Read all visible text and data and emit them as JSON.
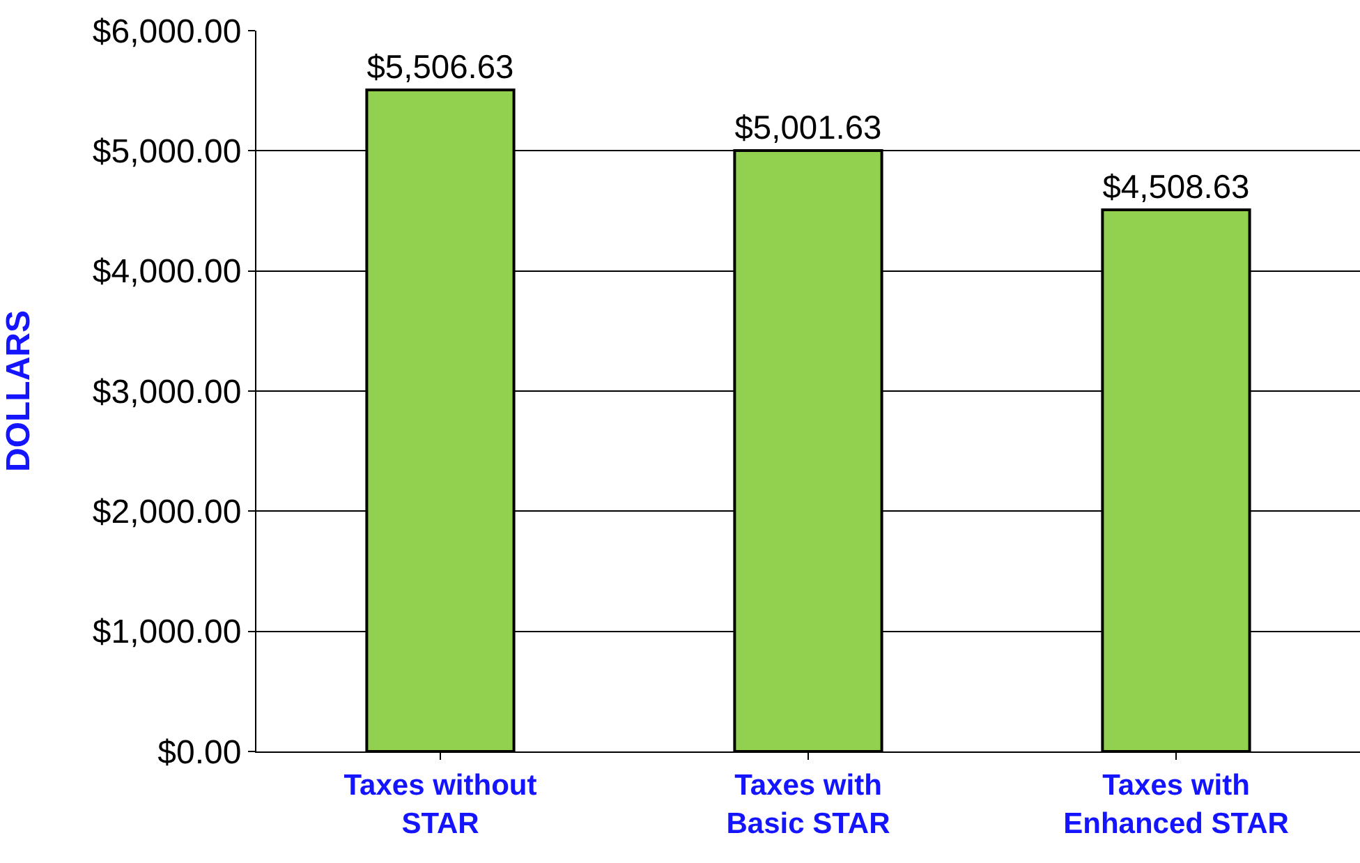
{
  "chart_data": {
    "type": "bar",
    "ylabel": "DOLLARS",
    "categories": [
      "Taxes without STAR",
      "Taxes with Basic STAR",
      "Taxes with Enhanced STAR"
    ],
    "values": [
      5506.63,
      5001.63,
      4508.63
    ],
    "color": "#92d050",
    "value_labels": [
      "$5,506.63",
      "$5,001.63",
      "$4,508.63"
    ],
    "ylim": [
      0,
      6000
    ],
    "yticks": [
      {
        "value": 0,
        "label": "$0.00"
      },
      {
        "value": 1000,
        "label": "$1,000.00"
      },
      {
        "value": 2000,
        "label": "$2,000.00"
      },
      {
        "value": 3000,
        "label": "$3,000.00"
      },
      {
        "value": 4000,
        "label": "$4,000.00"
      },
      {
        "value": 5000,
        "label": "$5,000.00"
      },
      {
        "value": 6000,
        "label": "$6,000.00"
      }
    ],
    "grid": "y"
  }
}
